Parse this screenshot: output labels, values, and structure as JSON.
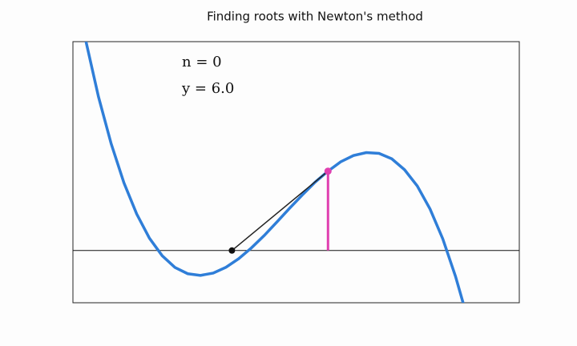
{
  "chart_data": {
    "type": "line",
    "title": "Finding roots with Newton's method",
    "annotations": [
      "n = 0",
      "y = 6.0"
    ],
    "xlim": [
      0,
      10.5
    ],
    "ylim": [
      -2.5,
      10
    ],
    "x": [
      0.3,
      0.6,
      0.9,
      1.2,
      1.5,
      1.8,
      2.1,
      2.4,
      2.7,
      3.0,
      3.3,
      3.6,
      3.9,
      4.2,
      4.5,
      4.8,
      5.1,
      5.4,
      5.7,
      6.0,
      6.3,
      6.6,
      6.9,
      7.2,
      7.5,
      7.8,
      8.1,
      8.4,
      8.7,
      9.0,
      9.2
    ],
    "series": [
      {
        "color": "#2f7ed8",
        "values": [
          10.07,
          7.37,
          5.11,
          3.24,
          1.75,
          0.59,
          -0.25,
          -0.81,
          -1.11,
          -1.19,
          -1.08,
          -0.8,
          -0.39,
          0.13,
          0.72,
          1.37,
          2.03,
          2.67,
          3.28,
          3.8,
          4.25,
          4.55,
          4.69,
          4.65,
          4.39,
          3.87,
          3.09,
          1.99,
          0.56,
          -1.24,
          -2.66
        ]
      }
    ],
    "baseline": 0,
    "tangent": {
      "color": "#222222",
      "x": [
        6.0,
        3.74
      ],
      "y": [
        3.8,
        0
      ]
    },
    "guess": {
      "color": "#e040b0",
      "x": 6.0,
      "y": 3.8
    },
    "next_guess": {
      "color": "#111111",
      "x": 3.74,
      "y": 0
    }
  }
}
